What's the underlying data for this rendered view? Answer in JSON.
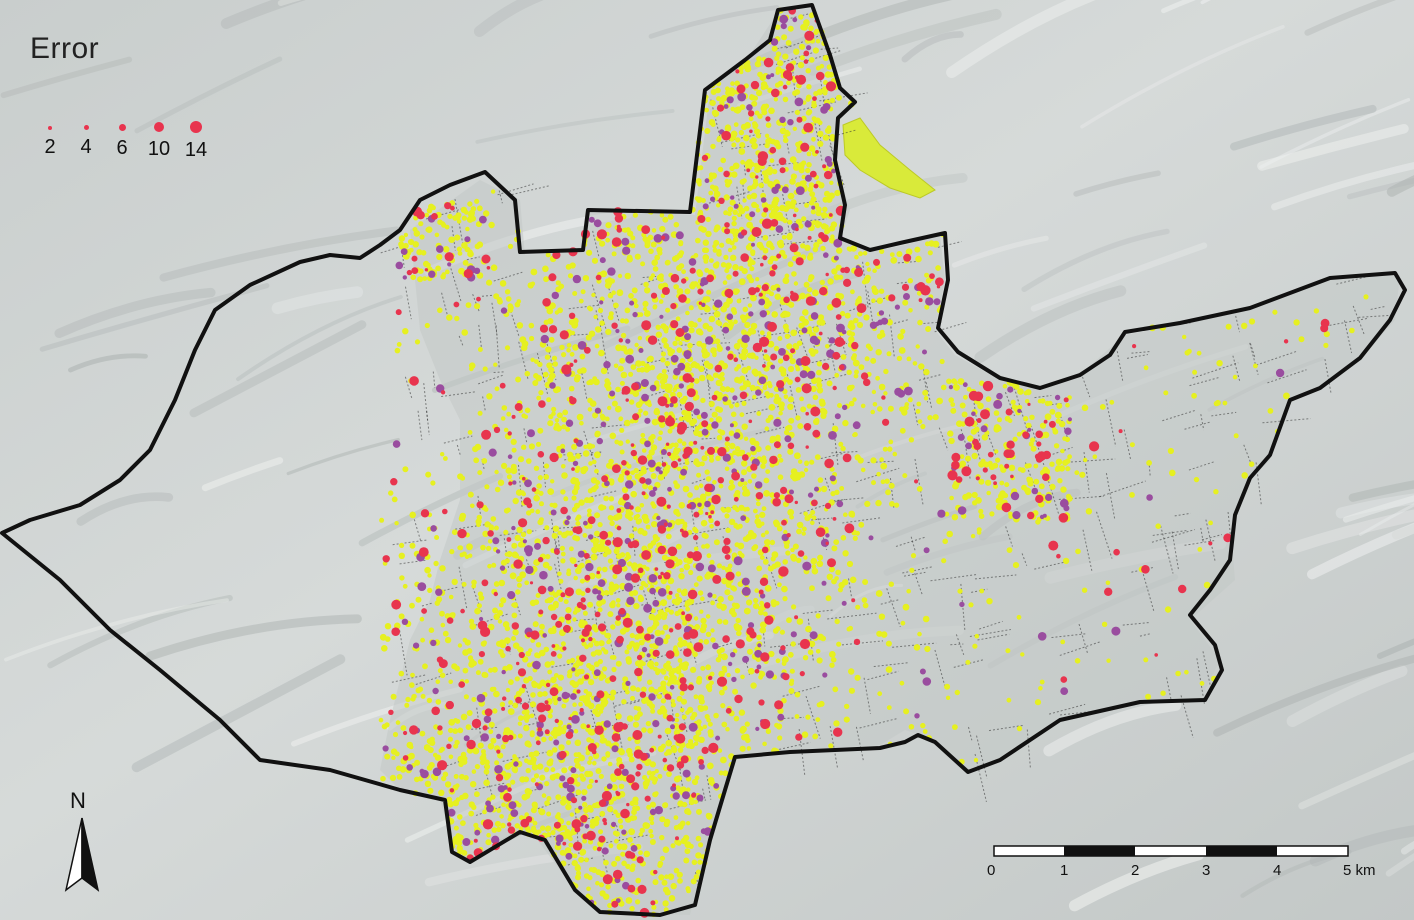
{
  "legend": {
    "title": "Error",
    "items": [
      {
        "label": "2",
        "value": 2
      },
      {
        "label": "4",
        "value": 4
      },
      {
        "label": "6",
        "value": 6
      },
      {
        "label": "10",
        "value": 10
      },
      {
        "label": "14",
        "value": 14
      }
    ]
  },
  "north_arrow": {
    "label": "N"
  },
  "scale_bar": {
    "ticks": [
      "0",
      "1",
      "2",
      "3",
      "4",
      "5 km"
    ]
  },
  "colors": {
    "background_relief": "#cfd3d2",
    "boundary": "#111111",
    "roads": "#222222",
    "points_low_error": "#e6f020",
    "points_high_error": "#e8344e",
    "points_medium_error": "#9a4d9f",
    "lake": "#d9ea3a"
  }
}
